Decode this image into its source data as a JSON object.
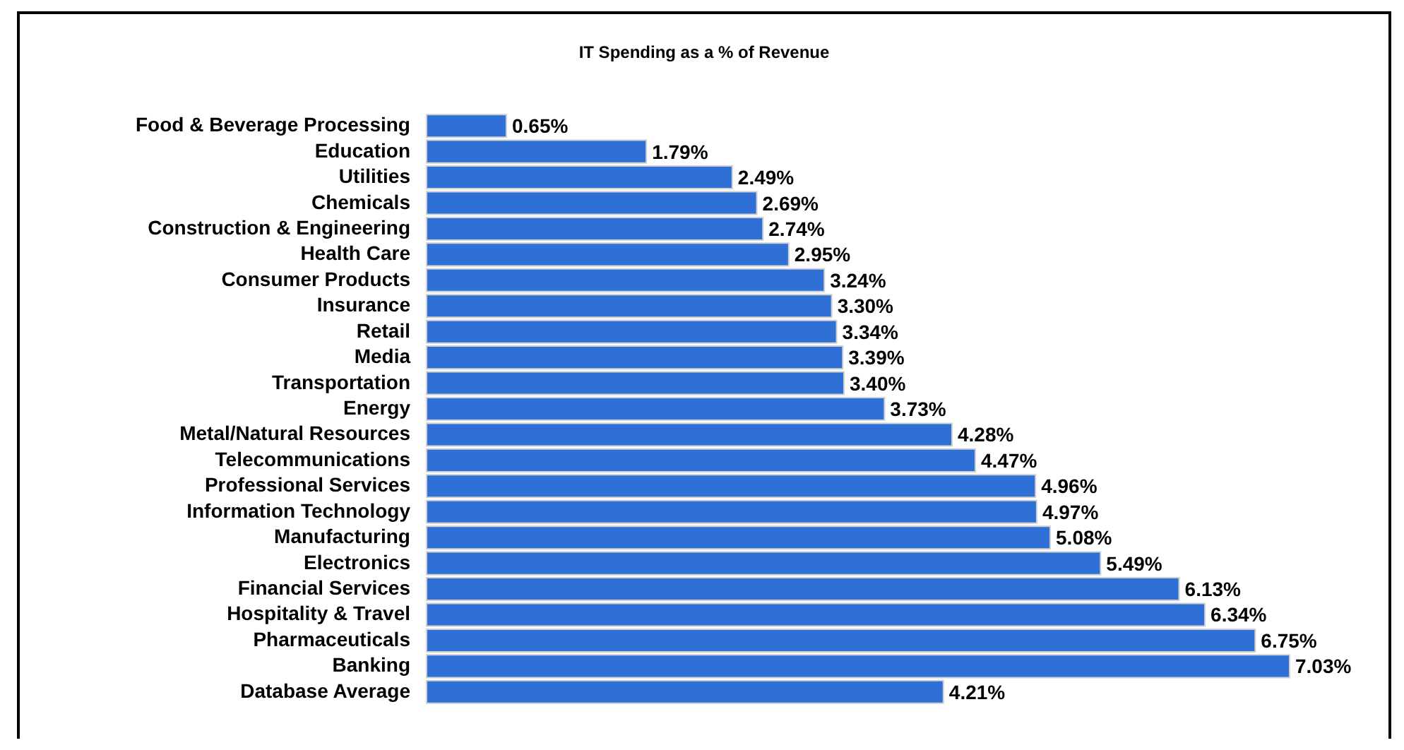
{
  "chart_data": {
    "type": "bar",
    "orientation": "horizontal",
    "title": "IT Spending as a % of Revenue",
    "categories": [
      "Food & Beverage Processing",
      "Education",
      "Utilities",
      "Chemicals",
      "Construction & Engineering",
      "Health Care",
      "Consumer Products",
      "Insurance",
      "Retail",
      "Media",
      "Transportation",
      "Energy",
      "Metal/Natural Resources",
      "Telecommunications",
      "Professional Services",
      "Information Technology",
      "Manufacturing",
      "Electronics",
      "Financial Services",
      "Hospitality & Travel",
      "Pharmaceuticals",
      "Banking",
      "Database Average"
    ],
    "values": [
      0.65,
      1.79,
      2.49,
      2.69,
      2.74,
      2.95,
      3.24,
      3.3,
      3.34,
      3.39,
      3.4,
      3.73,
      4.28,
      4.47,
      4.96,
      4.97,
      5.08,
      5.49,
      6.13,
      6.34,
      6.75,
      7.03,
      4.21
    ],
    "value_labels": [
      "0.65%",
      "1.79%",
      "2.49%",
      "2.69%",
      "2.74%",
      "2.95%",
      "3.24%",
      "3.30%",
      "3.34%",
      "3.39%",
      "3.40%",
      "3.73%",
      "4.28%",
      "4.47%",
      "4.96%",
      "4.97%",
      "5.08%",
      "5.49%",
      "6.13%",
      "6.34%",
      "6.75%",
      "7.03%",
      "4.21%"
    ],
    "color": "#2f70d6"
  }
}
